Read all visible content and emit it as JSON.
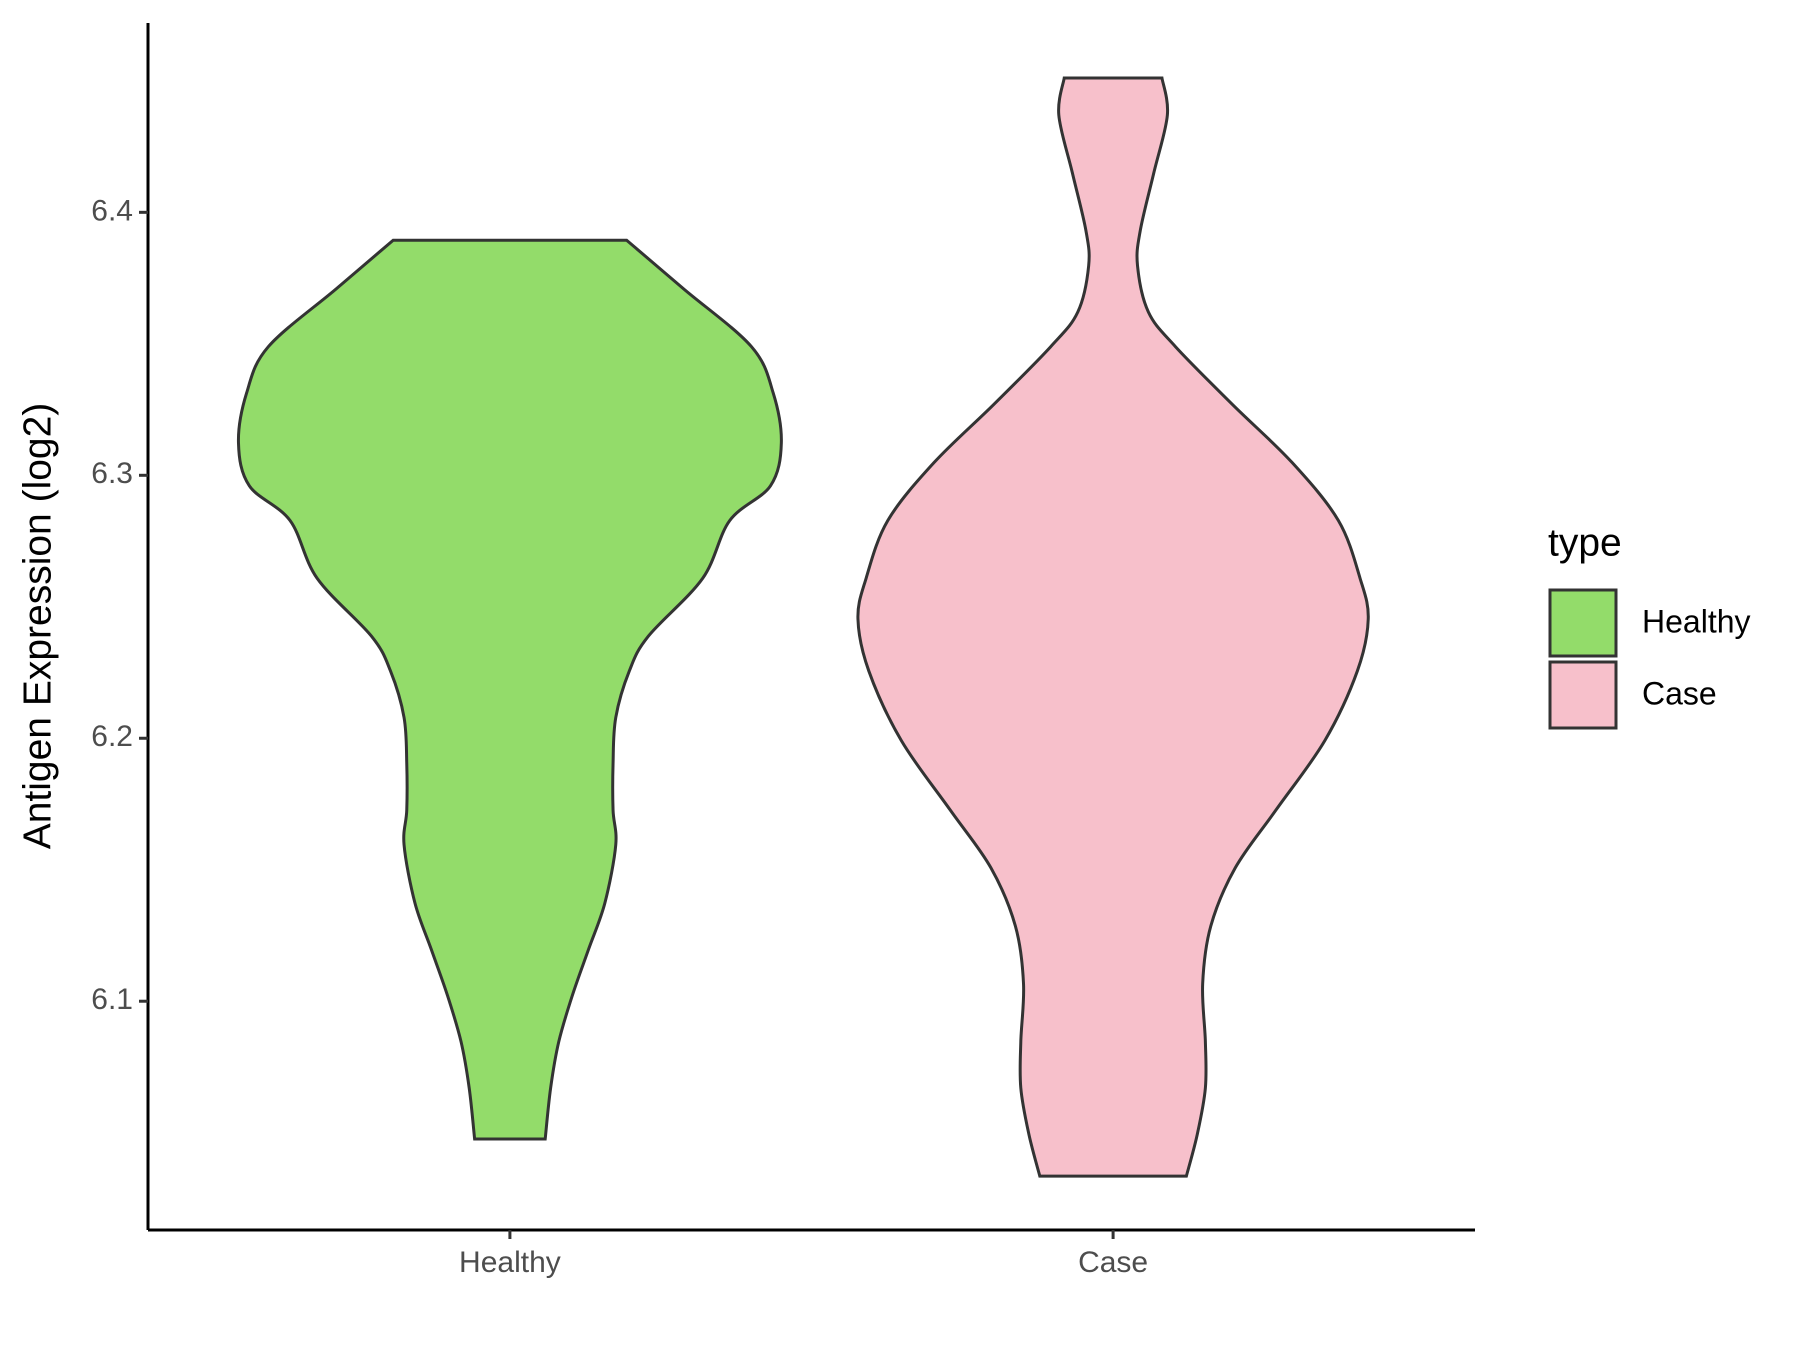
{
  "chart_data": {
    "type": "violin",
    "y_label": "Antigen Expression (log2)",
    "legend_title": "type",
    "legend_position": "right",
    "categories": [
      "Healthy",
      "Case"
    ],
    "ylim": [
      6.013,
      6.472
    ],
    "yticks": [
      6.1,
      6.2,
      6.3,
      6.4
    ],
    "series": [
      {
        "name": "Healthy",
        "color": "#93dc6a",
        "y": [
          6.3894,
          6.3709,
          6.3489,
          6.3313,
          6.3123,
          6.296,
          6.2828,
          6.2608,
          6.2388,
          6.2256,
          6.2079,
          6.1903,
          6.1727,
          6.1595,
          6.1374,
          6.1198,
          6.1022,
          6.0846,
          6.067,
          6.0476
        ],
        "density": [
          0.43,
          0.64,
          0.89,
          0.97,
          1.0,
          0.96,
          0.81,
          0.71,
          0.51,
          0.44,
          0.39,
          0.38,
          0.38,
          0.39,
          0.35,
          0.29,
          0.23,
          0.18,
          0.15,
          0.13
        ]
      },
      {
        "name": "Case",
        "color": "#f7c0cb",
        "y": [
          6.4511,
          6.437,
          6.415,
          6.393,
          6.3797,
          6.3621,
          6.3489,
          6.3269,
          6.3048,
          6.2828,
          6.2608,
          6.2454,
          6.2256,
          6.1991,
          6.1727,
          6.1507,
          6.1286,
          6.1066,
          6.0846,
          6.067,
          6.0493,
          6.0335
        ],
        "density": [
          0.18,
          0.2,
          0.15,
          0.1,
          0.09,
          0.13,
          0.23,
          0.44,
          0.66,
          0.83,
          0.91,
          0.94,
          0.9,
          0.78,
          0.6,
          0.45,
          0.36,
          0.33,
          0.34,
          0.34,
          0.31,
          0.27
        ]
      }
    ]
  }
}
